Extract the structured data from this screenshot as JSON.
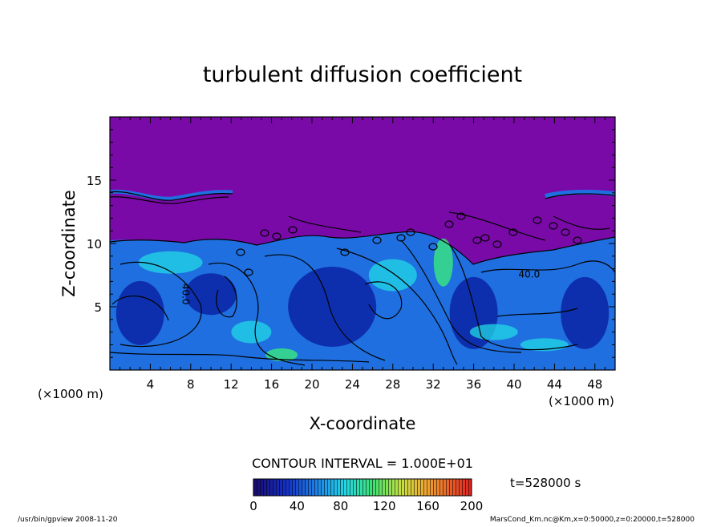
{
  "chart_data": {
    "type": "heatmap",
    "title": "turbulent diffusion coefficient",
    "xlabel": "X-coordinate",
    "ylabel": "Z-coordinate",
    "x_unit_label_left": "(×1000 m)",
    "x_unit_label_right": "(×1000 m)",
    "xlim": [
      0,
      50
    ],
    "ylim": [
      0,
      20
    ],
    "x_ticks": [
      4,
      8,
      12,
      16,
      20,
      24,
      28,
      32,
      36,
      40,
      44,
      48
    ],
    "y_ticks": [
      5,
      10,
      15
    ],
    "contour_labels": [
      {
        "text": "40.0",
        "x": 7.2,
        "y": 6.0
      },
      {
        "text": "40.0",
        "x": 41.5,
        "y": 7.3
      }
    ],
    "contour_interval_text": "CONTOUR INTERVAL = 1.000E+01",
    "time_text": "t=528000 s",
    "colorbar": {
      "min": 0,
      "max": 200,
      "tick_values": [
        0,
        40,
        80,
        120,
        160,
        200
      ],
      "tick_labels": [
        "0",
        "40",
        "80",
        "120",
        "160",
        "200"
      ]
    },
    "colors": {
      "background_value_color": "#7a0aa8",
      "low": "#0a1a9c",
      "mid": "#1f6fe0",
      "high": "#22d8e6",
      "peak": "#3cf07a"
    },
    "footer_left": "/usr/bin/gpview   2008-11-20",
    "footer_right": "MarsCond_Km.nc@Km,x=0:50000,z=0:20000,t=528000"
  }
}
